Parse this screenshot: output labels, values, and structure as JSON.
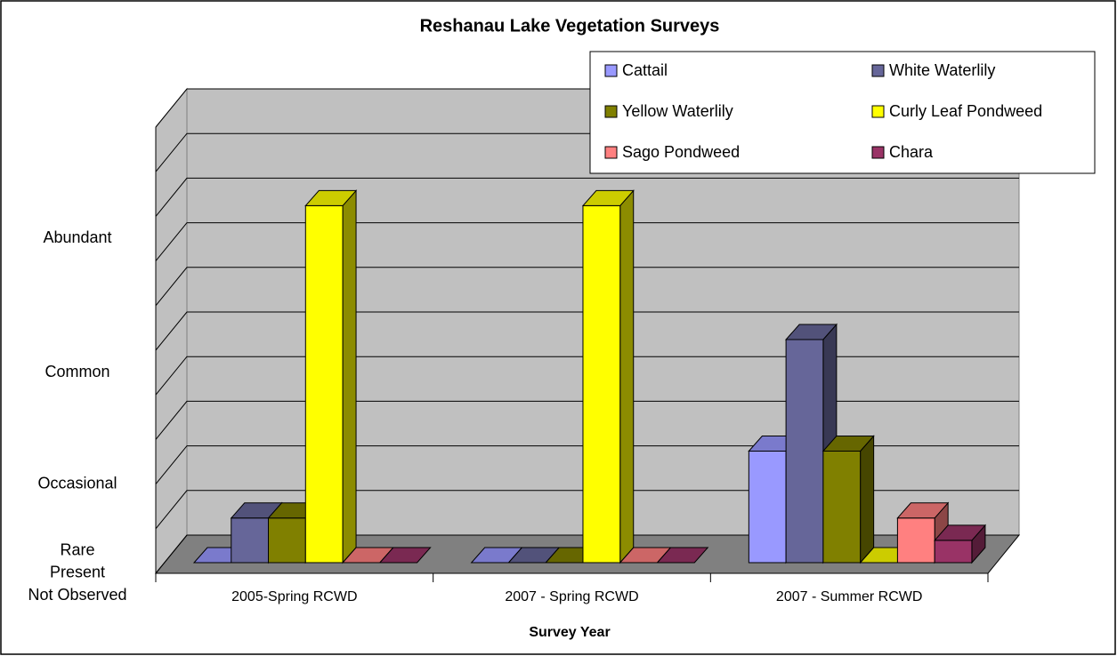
{
  "chart_data": {
    "type": "bar3d",
    "title": "Reshanau Lake Vegetation Surveys",
    "x_label": "Survey Year",
    "categories": [
      "2005-Spring RCWD",
      "2007 - Spring RCWD",
      "2007 - Summer RCWD"
    ],
    "series": [
      {
        "name": "Cattail",
        "color": "#9999ff",
        "values": [
          0,
          0,
          2.5
        ]
      },
      {
        "name": "White Waterlily",
        "color": "#666699",
        "values": [
          1,
          0,
          5
        ]
      },
      {
        "name": "Yellow Waterlily",
        "color": "#808000",
        "values": [
          1,
          0,
          2.5
        ]
      },
      {
        "name": "Curly Leaf Pondweed",
        "color": "#ffff00",
        "values": [
          8,
          8,
          0
        ]
      },
      {
        "name": "Sago Pondweed",
        "color": "#ff8080",
        "values": [
          0,
          0,
          1
        ]
      },
      {
        "name": "Chara",
        "color": "#993366",
        "values": [
          0,
          0,
          0.5
        ]
      }
    ],
    "ylim": [
      0,
      10
    ],
    "yticks": [
      {
        "value": 0,
        "label": "Not Observed"
      },
      {
        "value": 0.5,
        "label": "Present"
      },
      {
        "value": 1,
        "label": "Rare"
      },
      {
        "value": 2.5,
        "label": "Occasional"
      },
      {
        "value": 5,
        "label": "Common"
      },
      {
        "value": 8,
        "label": "Abundant"
      }
    ],
    "grid": true,
    "legend": "top-right"
  }
}
